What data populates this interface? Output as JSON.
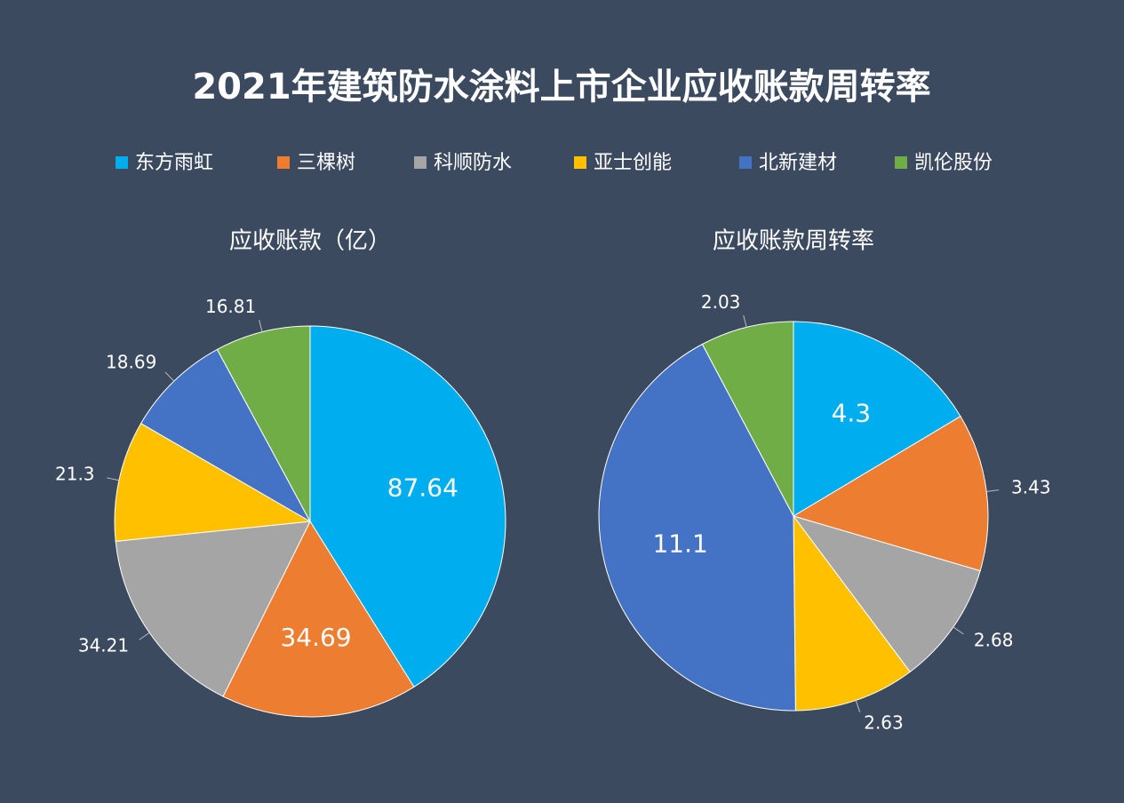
{
  "title": "2021年建筑防水涂料上市企业应收账款周转率",
  "legend": {
    "names": [
      "东方雨虹",
      "三棵树",
      "科顺防水",
      "亚士创能",
      "北新建材",
      "凯伦股份"
    ],
    "colors": [
      "#00adee",
      "#ed7d31",
      "#a5a5a5",
      "#ffc000",
      "#4472c4",
      "#70ad47"
    ]
  },
  "chart_data": [
    {
      "type": "pie",
      "title": "应收账款（亿）",
      "values": [
        87.64,
        34.69,
        34.21,
        21.3,
        18.69,
        16.81
      ]
    },
    {
      "type": "pie",
      "title": "应收账款周转率",
      "values": [
        4.3,
        3.43,
        2.68,
        2.63,
        11.1,
        2.03
      ]
    }
  ]
}
